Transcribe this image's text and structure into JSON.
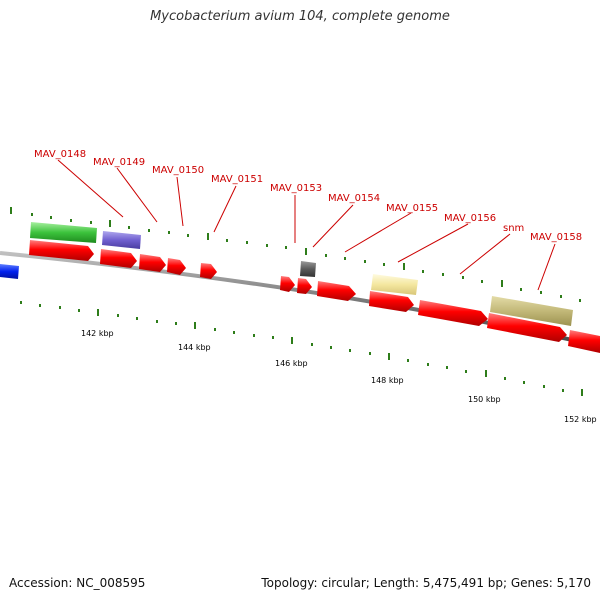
{
  "title": "Mycobacterium avium 104, complete genome",
  "footer": {
    "accession": "Accession: NC_008595",
    "stats": "Topology: circular; Length: 5,475,491 bp; Genes: 5,170"
  },
  "colors": {
    "cds": "#ff0000",
    "backbone": "#888888",
    "label": "#cc0000",
    "tick": "#2e7d1a"
  },
  "scale_labels": [
    "142 kbp",
    "144 kbp",
    "146 kbp",
    "148 kbp",
    "150 kbp",
    "152 kbp"
  ],
  "gene_labels": [
    "MAV_0148",
    "MAV_0149",
    "MAV_0150",
    "MAV_0151",
    "MAV_0153",
    "MAV_0154",
    "MAV_0155",
    "MAV_0156",
    "snm",
    "MAV_0158"
  ]
}
